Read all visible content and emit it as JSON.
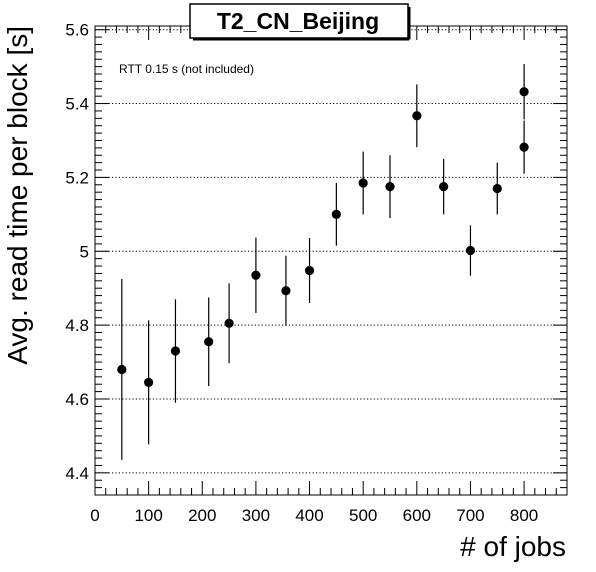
{
  "chart_data": {
    "type": "scatter",
    "title": "T2_CN_Beijing",
    "xlabel": "# of jobs",
    "ylabel": "Avg. read time per block [s]",
    "annotation": "RTT 0.15 s (not included)",
    "xlim": [
      0,
      880
    ],
    "ylim": [
      4.34,
      5.61
    ],
    "x_ticks": [
      0,
      100,
      200,
      300,
      400,
      500,
      600,
      700,
      800
    ],
    "y_ticks": [
      4.4,
      4.6,
      4.8,
      5,
      5.2,
      5.4,
      5.6
    ],
    "grid": "horizontal dotted",
    "marker_color": "#000000",
    "points": [
      {
        "x": 50,
        "y": 4.68,
        "err": 0.245
      },
      {
        "x": 100,
        "y": 4.645,
        "err": 0.168
      },
      {
        "x": 150,
        "y": 4.73,
        "err": 0.14
      },
      {
        "x": 212,
        "y": 4.755,
        "err": 0.12
      },
      {
        "x": 250,
        "y": 4.805,
        "err": 0.108
      },
      {
        "x": 300,
        "y": 4.935,
        "err": 0.102
      },
      {
        "x": 356,
        "y": 4.893,
        "err": 0.095
      },
      {
        "x": 400,
        "y": 4.948,
        "err": 0.088
      },
      {
        "x": 450,
        "y": 5.1,
        "err": 0.085
      },
      {
        "x": 500,
        "y": 5.185,
        "err": 0.085
      },
      {
        "x": 550,
        "y": 5.175,
        "err": 0.085
      },
      {
        "x": 600,
        "y": 5.367,
        "err": 0.085
      },
      {
        "x": 650,
        "y": 5.175,
        "err": 0.075
      },
      {
        "x": 700,
        "y": 5.002,
        "err": 0.068
      },
      {
        "x": 750,
        "y": 5.17,
        "err": 0.07
      },
      {
        "x": 800,
        "y": 5.432,
        "err": 0.075
      },
      {
        "x": 800,
        "y": 5.282,
        "err": 0.072
      }
    ]
  }
}
